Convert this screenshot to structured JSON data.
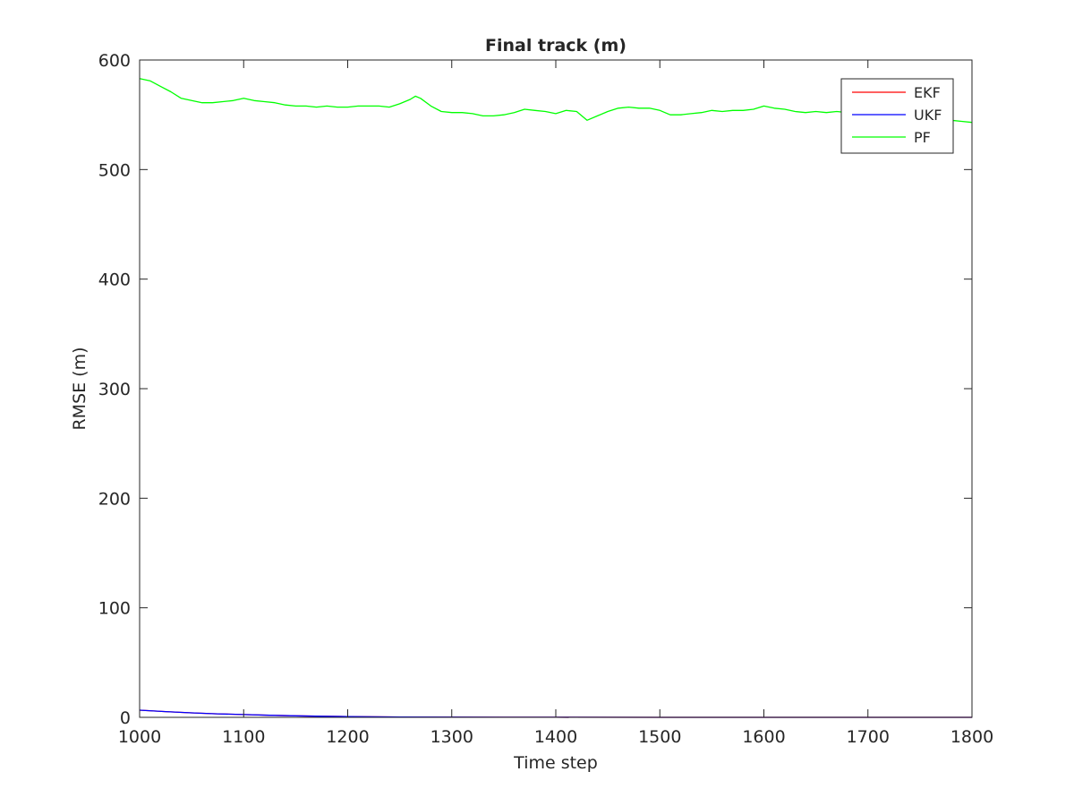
{
  "chart_data": {
    "type": "line",
    "title": "Final track (m)",
    "xlabel": "Time step",
    "ylabel": "RMSE (m)",
    "xlim": [
      1000,
      1800
    ],
    "ylim": [
      0,
      600
    ],
    "xticks": [
      1000,
      1100,
      1200,
      1300,
      1400,
      1500,
      1600,
      1700,
      1800
    ],
    "yticks": [
      0,
      100,
      200,
      300,
      400,
      500,
      600
    ],
    "grid": false,
    "legend_position": "top-right",
    "series": [
      {
        "name": "EKF",
        "color": "#ff0000",
        "x": [
          1000,
          1025,
          1050,
          1075,
          1100,
          1125,
          1150,
          1175,
          1200,
          1250,
          1300,
          1350,
          1400,
          1500,
          1600,
          1700,
          1800
        ],
        "values": [
          6.5,
          5.2,
          4.1,
          3.2,
          2.5,
          1.9,
          1.4,
          1.0,
          0.7,
          0.35,
          0.18,
          0.1,
          0.05,
          0.02,
          0.01,
          0.005,
          0.0
        ]
      },
      {
        "name": "UKF",
        "color": "#0000ff",
        "x": [
          1000,
          1025,
          1050,
          1075,
          1100,
          1125,
          1150,
          1175,
          1200,
          1250,
          1300,
          1350,
          1400,
          1500,
          1600,
          1700,
          1800
        ],
        "values": [
          6.5,
          5.2,
          4.1,
          3.2,
          2.5,
          1.9,
          1.4,
          1.0,
          0.7,
          0.35,
          0.18,
          0.1,
          0.05,
          0.02,
          0.01,
          0.005,
          0.0
        ]
      },
      {
        "name": "PF",
        "color": "#00ff00",
        "x": [
          1000,
          1010,
          1020,
          1030,
          1040,
          1050,
          1060,
          1070,
          1080,
          1090,
          1100,
          1110,
          1120,
          1130,
          1140,
          1150,
          1160,
          1170,
          1180,
          1190,
          1200,
          1210,
          1220,
          1230,
          1240,
          1250,
          1260,
          1265,
          1270,
          1280,
          1290,
          1300,
          1310,
          1320,
          1330,
          1340,
          1350,
          1360,
          1370,
          1380,
          1390,
          1400,
          1410,
          1420,
          1430,
          1440,
          1450,
          1460,
          1470,
          1480,
          1490,
          1500,
          1510,
          1520,
          1530,
          1540,
          1550,
          1560,
          1570,
          1580,
          1590,
          1600,
          1610,
          1620,
          1630,
          1640,
          1650,
          1660,
          1670,
          1680,
          1690,
          1700,
          1710,
          1720,
          1730,
          1740,
          1750,
          1760,
          1770,
          1780,
          1790,
          1800
        ],
        "values": [
          583,
          581,
          576,
          571,
          565,
          563,
          561,
          561,
          562,
          563,
          565,
          563,
          562,
          561,
          559,
          558,
          558,
          557,
          558,
          557,
          557,
          558,
          558,
          558,
          557,
          560,
          564,
          567,
          565,
          558,
          553,
          552,
          552,
          551,
          549,
          549,
          550,
          552,
          555,
          554,
          553,
          551,
          554,
          553,
          545,
          549,
          553,
          556,
          557,
          556,
          556,
          554,
          550,
          550,
          551,
          552,
          554,
          553,
          554,
          554,
          555,
          558,
          556,
          555,
          553,
          552,
          553,
          552,
          553,
          552,
          551,
          553,
          552,
          550,
          548,
          546,
          545,
          545,
          546,
          545,
          544,
          543
        ]
      }
    ]
  }
}
